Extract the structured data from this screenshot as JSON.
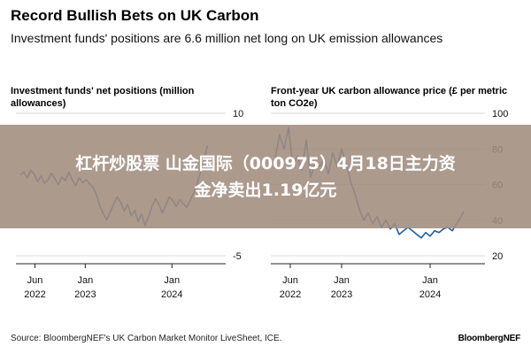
{
  "header": {
    "title": "Record Bullish Bets on UK Carbon",
    "subtitle": "Investment funds' positions are 6.6 million net long on UK emission allowances"
  },
  "chart_data": [
    {
      "type": "line",
      "title": "Investment funds' net positions (million allowances)",
      "ylim": [
        -5,
        10
      ],
      "yticks": [
        "10",
        "-5"
      ],
      "xticks": [
        {
          "label1": "Jun",
          "label2": "2022",
          "t": 2022.42
        },
        {
          "label1": "Jan",
          "label2": "2023",
          "t": 2023.0
        },
        {
          "label1": "Jan",
          "label2": "2024",
          "t": 2024.0
        }
      ],
      "xlim": [
        2022.2,
        2024.62
      ],
      "x": [
        2022.25,
        2022.29,
        2022.33,
        2022.37,
        2022.41,
        2022.45,
        2022.49,
        2022.53,
        2022.57,
        2022.61,
        2022.65,
        2022.69,
        2022.73,
        2022.77,
        2022.81,
        2022.85,
        2022.89,
        2022.93,
        2022.97,
        2023.01,
        2023.05,
        2023.09,
        2023.13,
        2023.17,
        2023.21,
        2023.25,
        2023.29,
        2023.33,
        2023.37,
        2023.41,
        2023.45,
        2023.49,
        2023.53,
        2023.57,
        2023.61,
        2023.65,
        2023.69,
        2023.73,
        2023.77,
        2023.81,
        2023.85,
        2023.89,
        2023.93,
        2023.97,
        2024.01,
        2024.05,
        2024.09,
        2024.13,
        2024.17,
        2024.21,
        2024.25,
        2024.29,
        2024.33,
        2024.37,
        2024.41
      ],
      "y": [
        3.5,
        3.8,
        3.2,
        4.0,
        3.6,
        2.8,
        3.4,
        2.6,
        3.0,
        3.7,
        3.1,
        2.5,
        3.3,
        2.9,
        3.8,
        3.0,
        2.4,
        3.2,
        2.7,
        3.0,
        2.6,
        2.2,
        1.4,
        0.2,
        -0.6,
        -1.2,
        -0.4,
        0.5,
        1.2,
        0.6,
        -0.3,
        0.4,
        -0.8,
        -0.2,
        -1.4,
        -0.6,
        -1.8,
        -0.9,
        0.2,
        1.0,
        0.4,
        -0.5,
        0.3,
        1.2,
        0.8,
        0.2,
        0.9,
        0.5,
        0.1,
        0.8,
        1.6,
        2.6,
        3.8,
        5.0,
        6.6
      ],
      "color": "#1e5ea8"
    },
    {
      "type": "line",
      "title": "Front-year UK carbon allowance price (£ per metric ton CO2e)",
      "ylim": [
        20,
        100
      ],
      "yticks": [
        "100",
        "80",
        "60",
        "40",
        "20"
      ],
      "xticks": [
        {
          "label1": "Jun",
          "label2": "2022",
          "t": 2022.42
        },
        {
          "label1": "Jan",
          "label2": "2023",
          "t": 2023.0
        },
        {
          "label1": "Jan",
          "label2": "2024",
          "t": 2024.0
        }
      ],
      "xlim": [
        2022.2,
        2024.62
      ],
      "x": [
        2022.25,
        2022.3,
        2022.35,
        2022.4,
        2022.45,
        2022.5,
        2022.55,
        2022.6,
        2022.65,
        2022.7,
        2022.75,
        2022.8,
        2022.85,
        2022.9,
        2022.95,
        2023.0,
        2023.05,
        2023.1,
        2023.15,
        2023.2,
        2023.25,
        2023.3,
        2023.35,
        2023.4,
        2023.45,
        2023.5,
        2023.55,
        2023.6,
        2023.65,
        2023.7,
        2023.75,
        2023.8,
        2023.85,
        2023.9,
        2023.95,
        2024.0,
        2024.05,
        2024.1,
        2024.15,
        2024.2,
        2024.25,
        2024.3,
        2024.35,
        2024.38
      ],
      "y": [
        75,
        88,
        80,
        92,
        70,
        76,
        68,
        85,
        64,
        72,
        70,
        74,
        66,
        78,
        70,
        80,
        72,
        62,
        55,
        46,
        40,
        44,
        38,
        42,
        36,
        40,
        35,
        38,
        32,
        34,
        36,
        34,
        32,
        30,
        33,
        31,
        34,
        33,
        35,
        36,
        34,
        38,
        42,
        45
      ],
      "color": "#1e5ea8"
    }
  ],
  "overlay": {
    "line1": "杠杆炒股票 山金国际（000975）4月18日主力资",
    "line2": "金净卖出1.19亿元"
  },
  "footer": {
    "source": "Source: BloombergNEF's UK Carbon Market Monitor LiveSheet, ICE.",
    "brand": "BloombergNEF"
  }
}
